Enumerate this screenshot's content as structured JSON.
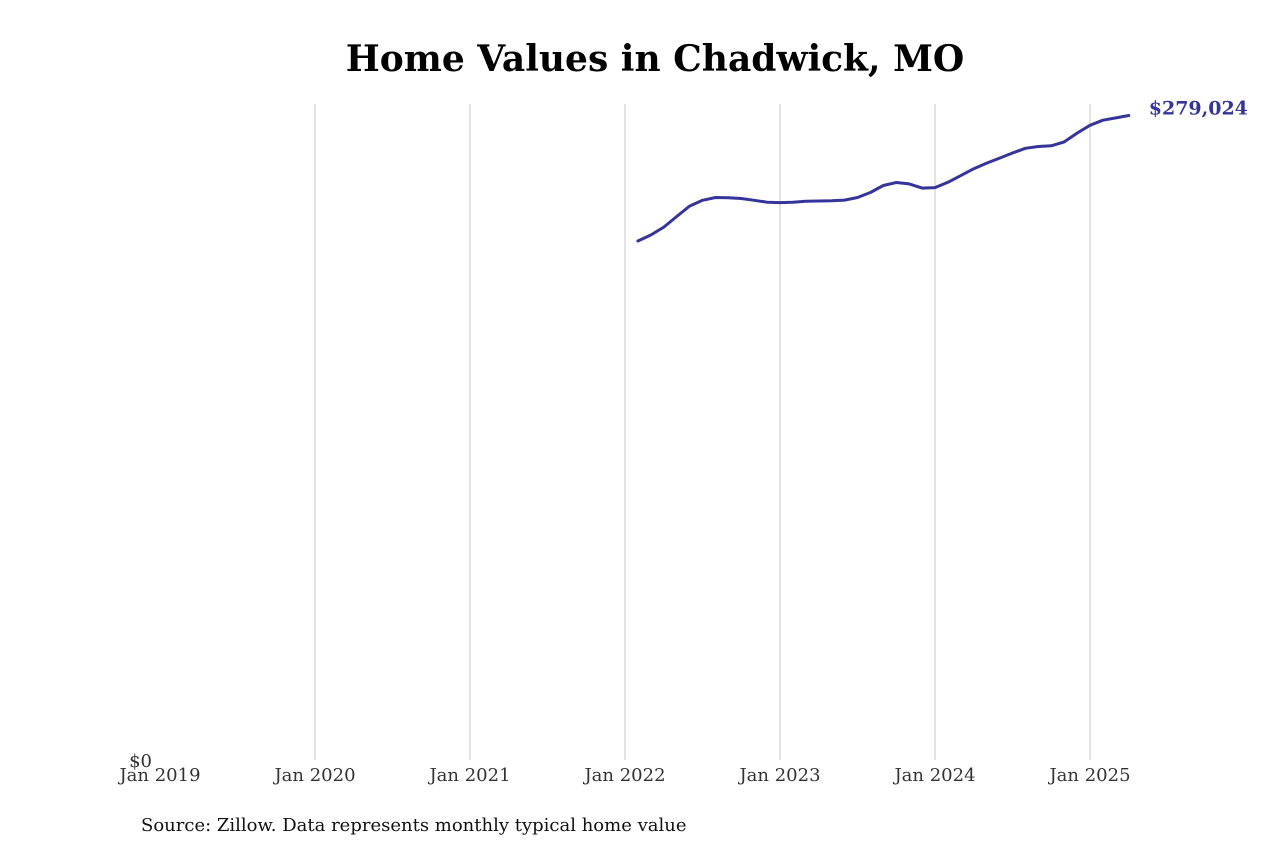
{
  "chart_data": {
    "type": "line",
    "title": "Home Values in Chadwick, MO",
    "xlabel": "",
    "ylabel": "",
    "x_tick_labels": [
      "Jan 2019",
      "Jan 2020",
      "Jan 2021",
      "Jan 2022",
      "Jan 2023",
      "Jan 2024",
      "Jan 2025"
    ],
    "y_tick_labels": [
      "$0"
    ],
    "ylim": [
      0,
      284000
    ],
    "grid": "vertical",
    "colors": {
      "line": "#35349a",
      "grid": "#c8c8c8",
      "end_label": "#35349a"
    },
    "end_label": "$279,024",
    "series": [
      {
        "x": [
          "2022-02",
          "2022-03",
          "2022-04",
          "2022-05",
          "2022-06",
          "2022-07",
          "2022-08",
          "2022-09",
          "2022-10",
          "2022-11",
          "2022-12",
          "2023-01",
          "2023-02",
          "2023-03",
          "2023-04",
          "2023-05",
          "2023-06",
          "2023-07",
          "2023-08",
          "2023-09",
          "2023-10",
          "2023-11",
          "2023-12",
          "2024-01",
          "2024-02",
          "2024-03",
          "2024-04",
          "2024-05",
          "2024-06",
          "2024-07",
          "2024-08",
          "2024-09",
          "2024-10",
          "2024-11",
          "2024-12",
          "2025-01",
          "2025-02",
          "2025-03",
          "2025-04"
        ],
        "values": [
          224700,
          227300,
          230700,
          235300,
          239800,
          242300,
          243500,
          243400,
          243100,
          242300,
          241500,
          241300,
          241500,
          241900,
          242000,
          242100,
          242400,
          243500,
          245700,
          248700,
          250000,
          249400,
          247600,
          247800,
          250100,
          253000,
          256000,
          258400,
          260600,
          262800,
          264800,
          265600,
          265900,
          267600,
          271400,
          274800,
          277000,
          278000,
          279024
        ]
      }
    ]
  },
  "source_note": "Source: Zillow. Data represents monthly typical home value"
}
